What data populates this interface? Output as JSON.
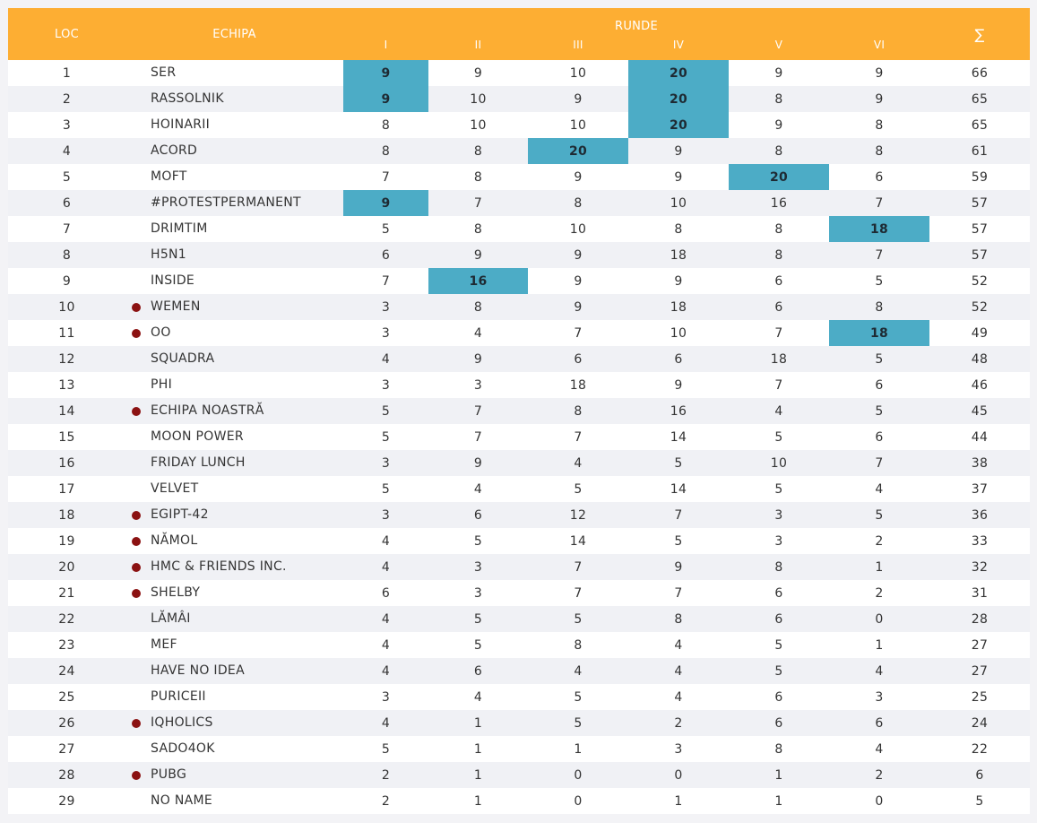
{
  "header": {
    "loc": "LOC",
    "team": "ECHIPA",
    "rounds_title": "RUNDE",
    "rounds": [
      "I",
      "II",
      "III",
      "IV",
      "V",
      "VI"
    ],
    "sum": "∑"
  },
  "colors": {
    "header_bg": "#fdae33",
    "highlight": "#4cacc6",
    "marker_dot": "#8b1212"
  },
  "rows": [
    {
      "loc": "1",
      "team": "SER",
      "marked": false,
      "r": [
        "9",
        "9",
        "10",
        "20",
        "9",
        "9"
      ],
      "hl": [
        0,
        3
      ],
      "sum": "66"
    },
    {
      "loc": "2",
      "team": "RASSOLNIK",
      "marked": false,
      "r": [
        "9",
        "10",
        "9",
        "20",
        "8",
        "9"
      ],
      "hl": [
        0,
        3
      ],
      "sum": "65"
    },
    {
      "loc": "3",
      "team": "HOINARII",
      "marked": false,
      "r": [
        "8",
        "10",
        "10",
        "20",
        "9",
        "8"
      ],
      "hl": [
        3
      ],
      "sum": "65"
    },
    {
      "loc": "4",
      "team": "ACORD",
      "marked": false,
      "r": [
        "8",
        "8",
        "20",
        "9",
        "8",
        "8"
      ],
      "hl": [
        2
      ],
      "sum": "61"
    },
    {
      "loc": "5",
      "team": "MOFT",
      "marked": false,
      "r": [
        "7",
        "8",
        "9",
        "9",
        "20",
        "6"
      ],
      "hl": [
        4
      ],
      "sum": "59"
    },
    {
      "loc": "6",
      "team": "#PROTESTPERMANENT",
      "marked": false,
      "r": [
        "9",
        "7",
        "8",
        "10",
        "16",
        "7"
      ],
      "hl": [
        0
      ],
      "sum": "57"
    },
    {
      "loc": "7",
      "team": "DRIMTIM",
      "marked": false,
      "r": [
        "5",
        "8",
        "10",
        "8",
        "8",
        "18"
      ],
      "hl": [
        5
      ],
      "sum": "57"
    },
    {
      "loc": "8",
      "team": "H5N1",
      "marked": false,
      "r": [
        "6",
        "9",
        "9",
        "18",
        "8",
        "7"
      ],
      "hl": [],
      "sum": "57"
    },
    {
      "loc": "9",
      "team": "INSIDE",
      "marked": false,
      "r": [
        "7",
        "16",
        "9",
        "9",
        "6",
        "5"
      ],
      "hl": [
        1
      ],
      "sum": "52"
    },
    {
      "loc": "10",
      "team": "WEMEN",
      "marked": true,
      "r": [
        "3",
        "8",
        "9",
        "18",
        "6",
        "8"
      ],
      "hl": [],
      "sum": "52"
    },
    {
      "loc": "11",
      "team": "OO",
      "marked": true,
      "r": [
        "3",
        "4",
        "7",
        "10",
        "7",
        "18"
      ],
      "hl": [
        5
      ],
      "sum": "49"
    },
    {
      "loc": "12",
      "team": "SQUADRA",
      "marked": false,
      "r": [
        "4",
        "9",
        "6",
        "6",
        "18",
        "5"
      ],
      "hl": [],
      "sum": "48"
    },
    {
      "loc": "13",
      "team": "PHI",
      "marked": false,
      "r": [
        "3",
        "3",
        "18",
        "9",
        "7",
        "6"
      ],
      "hl": [],
      "sum": "46"
    },
    {
      "loc": "14",
      "team": "ECHIPA NOASTRĂ",
      "marked": true,
      "r": [
        "5",
        "7",
        "8",
        "16",
        "4",
        "5"
      ],
      "hl": [],
      "sum": "45"
    },
    {
      "loc": "15",
      "team": "MOON POWER",
      "marked": false,
      "r": [
        "5",
        "7",
        "7",
        "14",
        "5",
        "6"
      ],
      "hl": [],
      "sum": "44"
    },
    {
      "loc": "16",
      "team": "FRIDAY LUNCH",
      "marked": false,
      "r": [
        "3",
        "9",
        "4",
        "5",
        "10",
        "7"
      ],
      "hl": [],
      "sum": "38"
    },
    {
      "loc": "17",
      "team": "VELVET",
      "marked": false,
      "r": [
        "5",
        "4",
        "5",
        "14",
        "5",
        "4"
      ],
      "hl": [],
      "sum": "37"
    },
    {
      "loc": "18",
      "team": "EGIPT-42",
      "marked": true,
      "r": [
        "3",
        "6",
        "12",
        "7",
        "3",
        "5"
      ],
      "hl": [],
      "sum": "36"
    },
    {
      "loc": "19",
      "team": "NĂMOL",
      "marked": true,
      "r": [
        "4",
        "5",
        "14",
        "5",
        "3",
        "2"
      ],
      "hl": [],
      "sum": "33"
    },
    {
      "loc": "20",
      "team": "HMC & FRIENDS INC.",
      "marked": true,
      "r": [
        "4",
        "3",
        "7",
        "9",
        "8",
        "1"
      ],
      "hl": [],
      "sum": "32"
    },
    {
      "loc": "21",
      "team": "SHELBY",
      "marked": true,
      "r": [
        "6",
        "3",
        "7",
        "7",
        "6",
        "2"
      ],
      "hl": [],
      "sum": "31"
    },
    {
      "loc": "22",
      "team": "LĂMÂI",
      "marked": false,
      "r": [
        "4",
        "5",
        "5",
        "8",
        "6",
        "0"
      ],
      "hl": [],
      "sum": "28"
    },
    {
      "loc": "23",
      "team": "MEF",
      "marked": false,
      "r": [
        "4",
        "5",
        "8",
        "4",
        "5",
        "1"
      ],
      "hl": [],
      "sum": "27"
    },
    {
      "loc": "24",
      "team": "HAVE NO IDEA",
      "marked": false,
      "r": [
        "4",
        "6",
        "4",
        "4",
        "5",
        "4"
      ],
      "hl": [],
      "sum": "27"
    },
    {
      "loc": "25",
      "team": "PURICEII",
      "marked": false,
      "r": [
        "3",
        "4",
        "5",
        "4",
        "6",
        "3"
      ],
      "hl": [],
      "sum": "25"
    },
    {
      "loc": "26",
      "team": "IQHOLICS",
      "marked": true,
      "r": [
        "4",
        "1",
        "5",
        "2",
        "6",
        "6"
      ],
      "hl": [],
      "sum": "24"
    },
    {
      "loc": "27",
      "team": "SADO4OK",
      "marked": false,
      "r": [
        "5",
        "1",
        "1",
        "3",
        "8",
        "4"
      ],
      "hl": [],
      "sum": "22"
    },
    {
      "loc": "28",
      "team": "PUBG",
      "marked": true,
      "r": [
        "2",
        "1",
        "0",
        "0",
        "1",
        "2"
      ],
      "hl": [],
      "sum": "6"
    },
    {
      "loc": "29",
      "team": "NO NAME",
      "marked": false,
      "r": [
        "2",
        "1",
        "0",
        "1",
        "1",
        "0"
      ],
      "hl": [],
      "sum": "5"
    }
  ]
}
